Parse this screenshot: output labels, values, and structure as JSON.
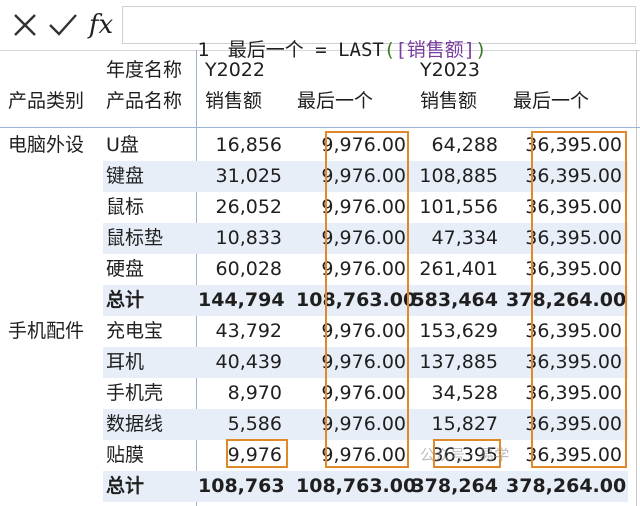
{
  "formula": {
    "line_number": "1",
    "measure_name": "最后一个",
    "equals": "=",
    "function": "LAST",
    "open_paren": "(",
    "reference": "[销售额]",
    "close_paren": ")",
    "fx_label": "fx"
  },
  "headers": {
    "row1_label": "年度名称",
    "year1": "Y2022",
    "year2": "Y2023",
    "row2_cat": "产品类别",
    "row2_name": "产品名称",
    "col_sales1": "销售额",
    "col_last1": "最后一个",
    "col_sales2": "销售额",
    "col_last2": "最后一个"
  },
  "rows": [
    {
      "cat": "电脑外设",
      "name": "U盘",
      "s22": "16,856",
      "l22": "9,976.00",
      "s23": "64,288",
      "l23": "36,395.00"
    },
    {
      "cat": "",
      "name": "键盘",
      "s22": "31,025",
      "l22": "9,976.00",
      "s23": "108,885",
      "l23": "36,395.00"
    },
    {
      "cat": "",
      "name": "鼠标",
      "s22": "26,052",
      "l22": "9,976.00",
      "s23": "101,556",
      "l23": "36,395.00"
    },
    {
      "cat": "",
      "name": "鼠标垫",
      "s22": "10,833",
      "l22": "9,976.00",
      "s23": "47,334",
      "l23": "36,395.00"
    },
    {
      "cat": "",
      "name": "硬盘",
      "s22": "60,028",
      "l22": "9,976.00",
      "s23": "261,401",
      "l23": "36,395.00"
    },
    {
      "cat": "",
      "name": "总计",
      "s22": "144,794",
      "l22": "108,763.00",
      "s23": "583,464",
      "l23": "378,264.00"
    },
    {
      "cat": "手机配件",
      "name": "充电宝",
      "s22": "43,792",
      "l22": "9,976.00",
      "s23": "153,629",
      "l23": "36,395.00"
    },
    {
      "cat": "",
      "name": "耳机",
      "s22": "40,439",
      "l22": "9,976.00",
      "s23": "137,885",
      "l23": "36,395.00"
    },
    {
      "cat": "",
      "name": "手机壳",
      "s22": "8,970",
      "l22": "9,976.00",
      "s23": "34,528",
      "l23": "36,395.00"
    },
    {
      "cat": "",
      "name": "数据线",
      "s22": "5,586",
      "l22": "9,976.00",
      "s23": "15,827",
      "l23": "36,395.00"
    },
    {
      "cat": "",
      "name": "贴膜",
      "s22": "9,976",
      "l22": "9,976.00",
      "s23": "36,395",
      "l23": "36,395.00"
    },
    {
      "cat": "",
      "name": "总计",
      "s22": "108,763",
      "l22": "108,763.00",
      "s23": "378,264",
      "l23": "378,264.00"
    }
  ],
  "watermark": "公众号 · 易学"
}
